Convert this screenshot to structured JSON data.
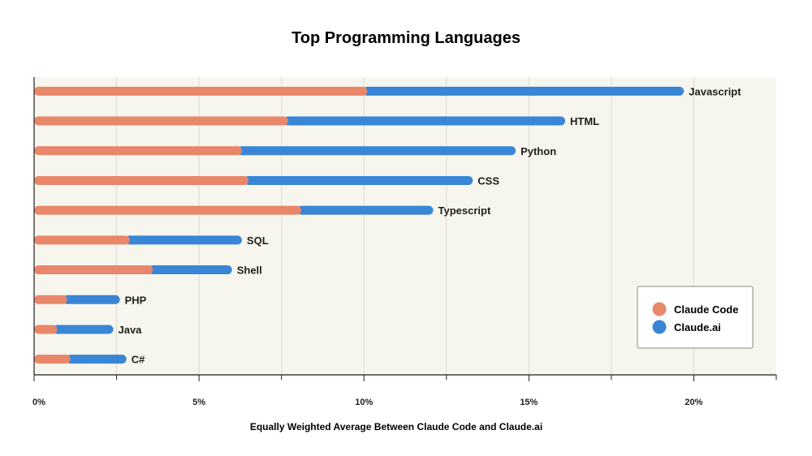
{
  "chart_data": {
    "type": "bar",
    "stacked": true,
    "orientation": "horizontal",
    "title": "Top Programming Languages",
    "xlabel": "Equally Weighted Average Between Claude Code and Claude.ai",
    "ylabel": "",
    "xlim": [
      0,
      22.5
    ],
    "xticks": [
      0,
      5,
      10,
      15,
      20
    ],
    "xtick_labels": [
      "0%",
      "5%",
      "10%",
      "15%",
      "20%"
    ],
    "grid": true,
    "legend_position": "bottom-right",
    "categories": [
      "Javascript",
      "HTML",
      "Python",
      "CSS",
      "Typescript",
      "SQL",
      "Shell",
      "PHP",
      "Java",
      "C#"
    ],
    "series": [
      {
        "name": "Claude Code",
        "color": "#e8876a",
        "values": [
          10.1,
          7.7,
          6.3,
          6.5,
          8.1,
          2.9,
          3.6,
          1.0,
          0.7,
          1.1
        ]
      },
      {
        "name": "Claude.ai",
        "color": "#3a86d6",
        "values": [
          9.6,
          8.4,
          8.3,
          6.8,
          4.0,
          3.4,
          2.4,
          1.6,
          1.7,
          1.7
        ]
      }
    ],
    "colors": {
      "plot_background": "#f7f6ee",
      "grid": "#dcdbd2",
      "axis": "#1f1e1b",
      "text": "#1f1e1b"
    }
  }
}
